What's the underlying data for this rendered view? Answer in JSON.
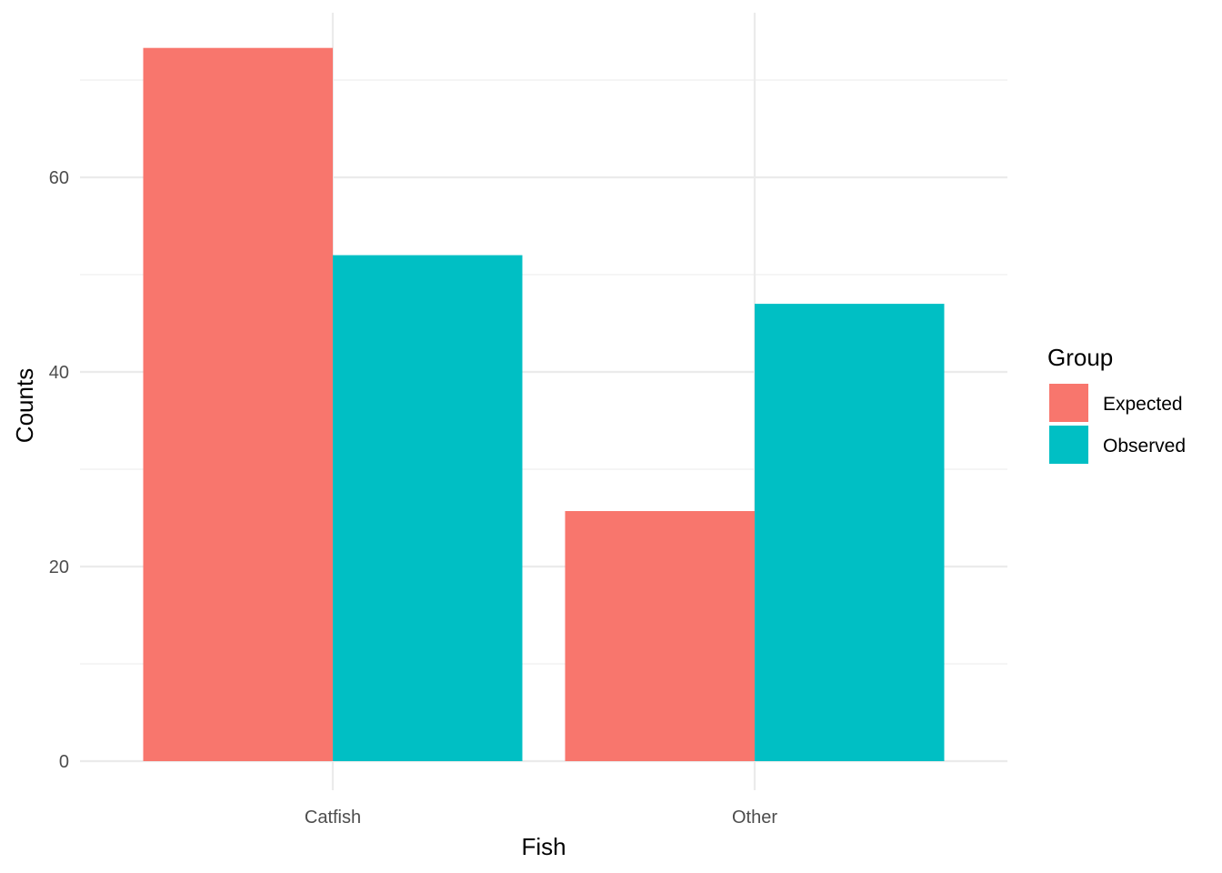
{
  "chart_data": {
    "type": "bar",
    "categories": [
      "Catfish",
      "Other"
    ],
    "series": [
      {
        "name": "Expected",
        "color": "#F8766D",
        "values": [
          73.3,
          25.7
        ]
      },
      {
        "name": "Observed",
        "color": "#00BFC4",
        "values": [
          52,
          47
        ]
      }
    ],
    "xlabel": "Fish",
    "ylabel": "Counts",
    "ylim": [
      0,
      77
    ],
    "yticks": [
      0,
      20,
      40,
      60
    ],
    "grid": true,
    "legend": {
      "title": "Group",
      "position": "right"
    }
  }
}
